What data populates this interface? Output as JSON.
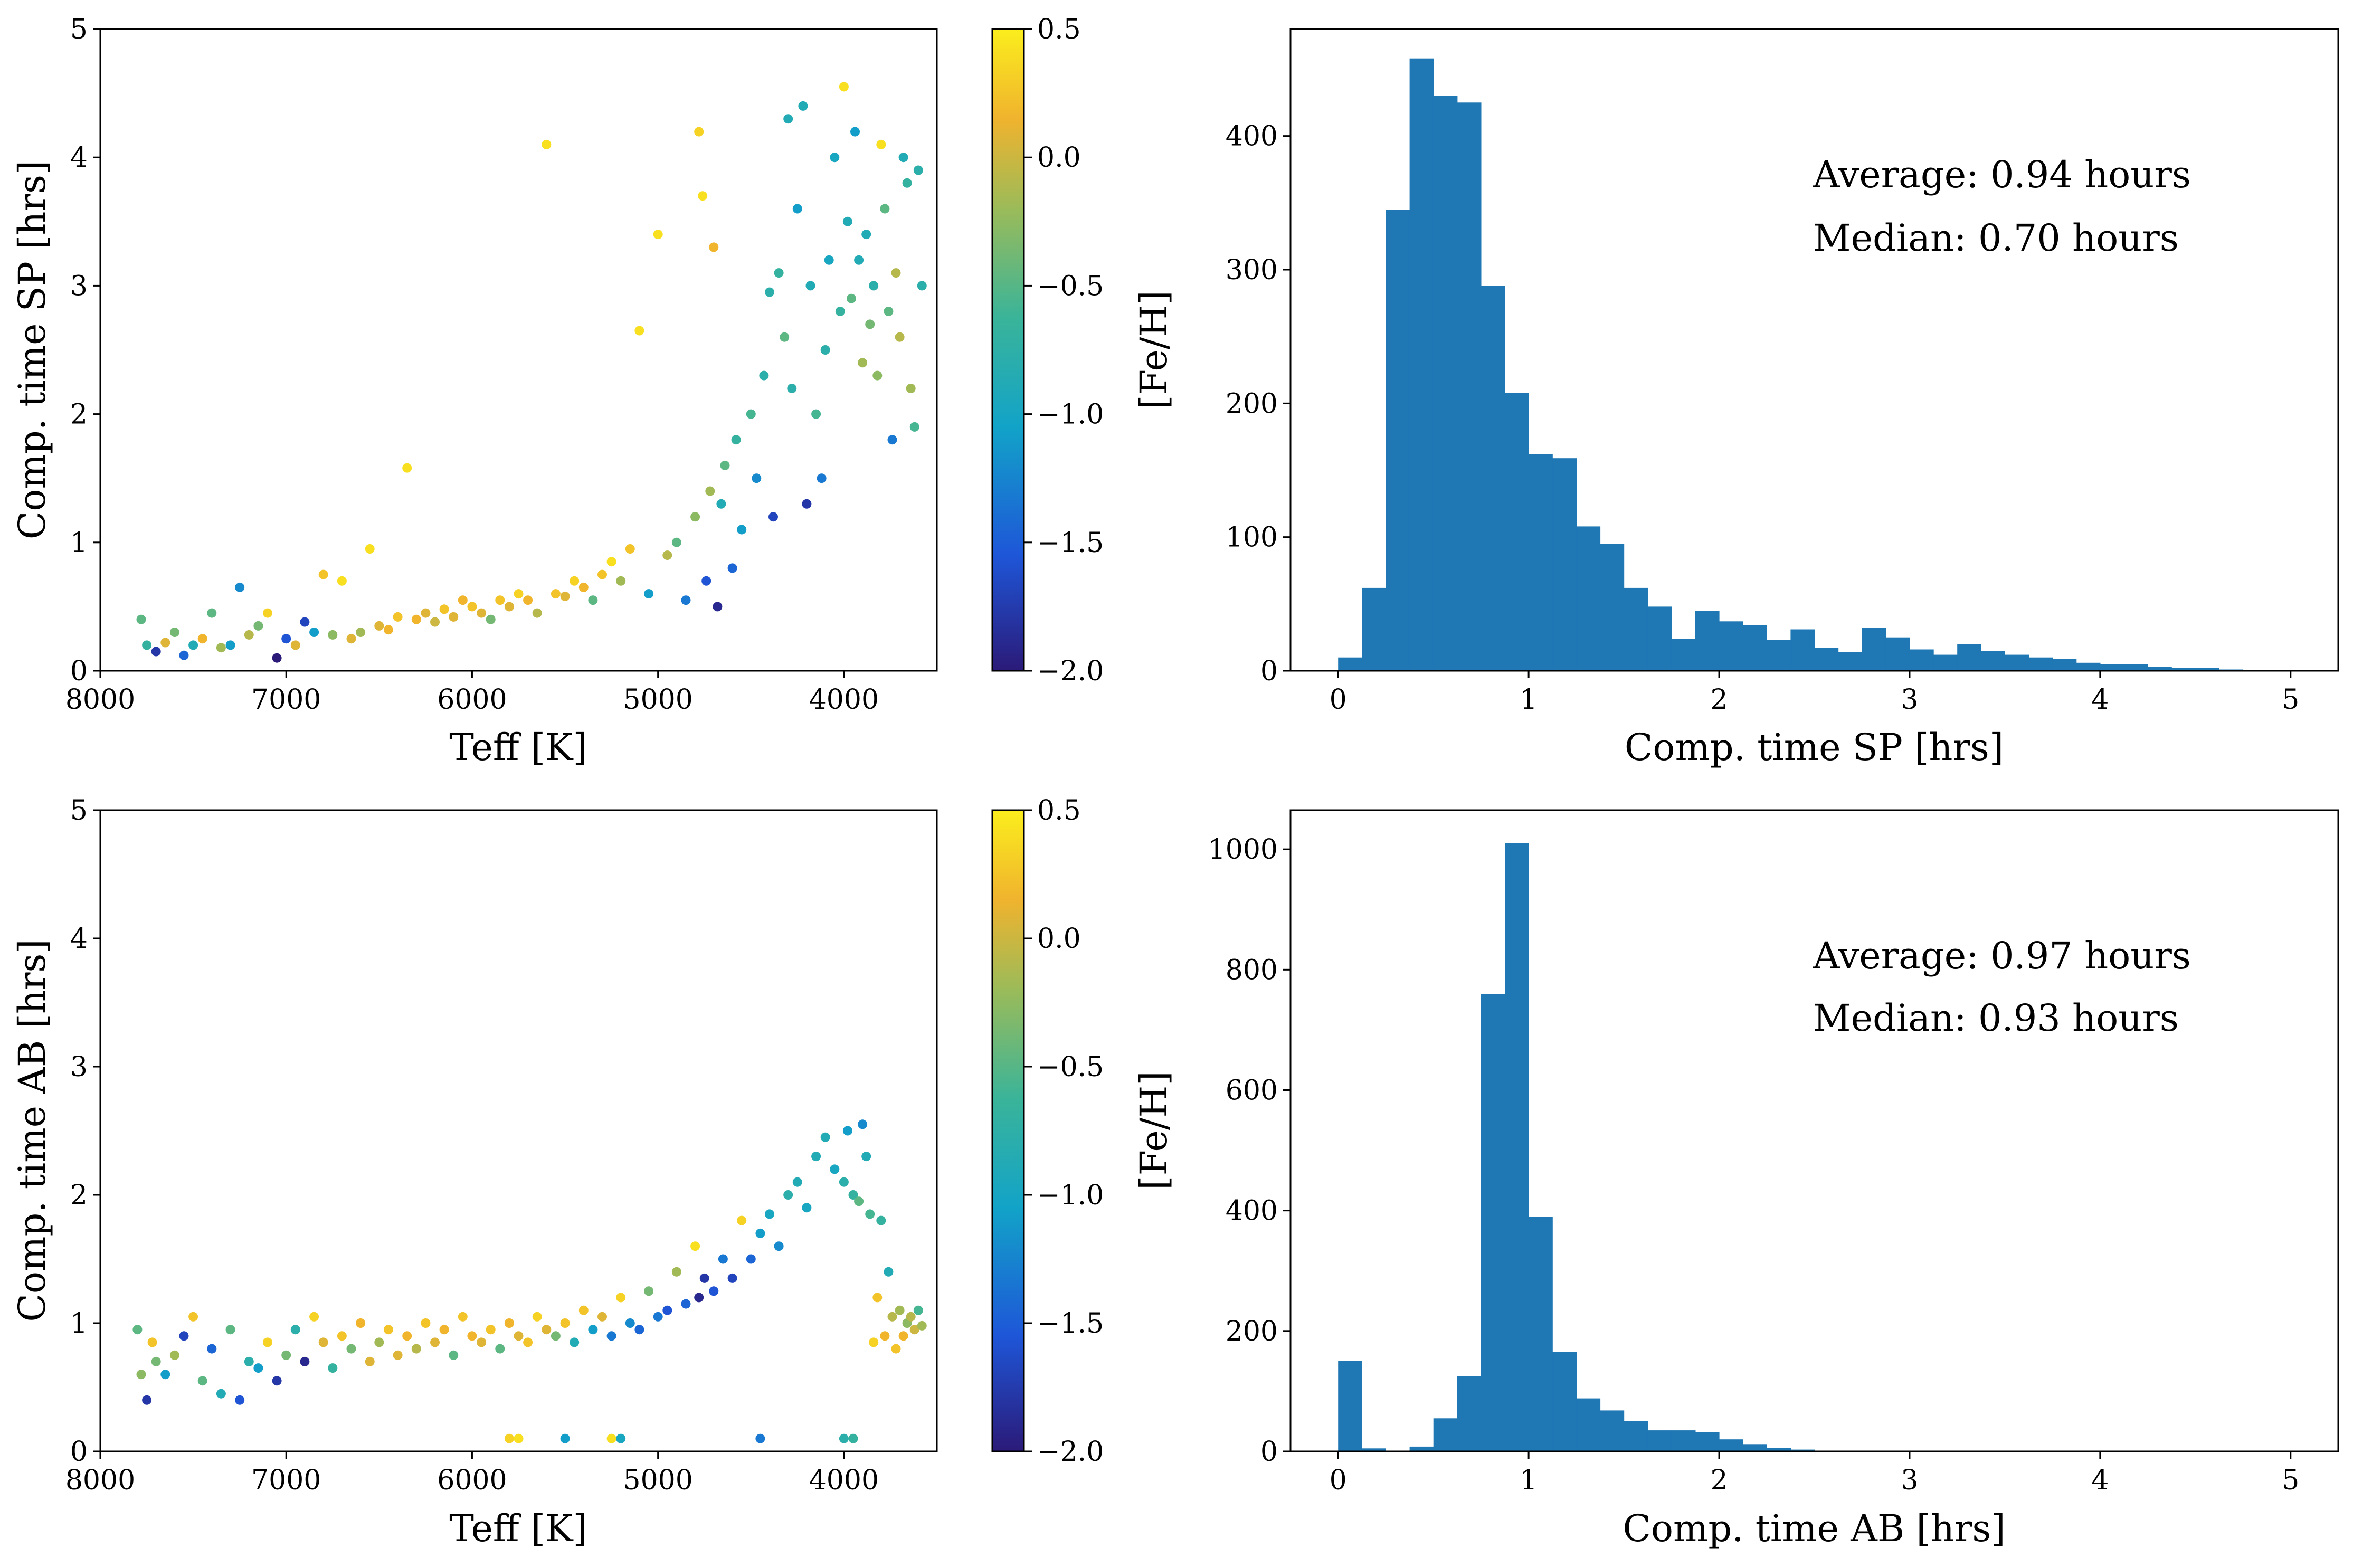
{
  "chart_data": [
    {
      "id": "scatter_sp",
      "type": "scatter",
      "xlabel": "Teff [K]",
      "ylabel": "Comp. time SP [hrs]",
      "xlim": [
        8000,
        3500
      ],
      "ylim": [
        0,
        5
      ],
      "xticks": [
        8000,
        7000,
        6000,
        5000,
        4000
      ],
      "yticks": [
        0,
        1,
        2,
        3,
        4,
        5
      ],
      "colorbar": {
        "label": "[Fe/H]",
        "min": -2.0,
        "max": 0.5,
        "ticks": [
          0.5,
          0.0,
          -0.5,
          -1.0,
          -1.5,
          -2.0
        ],
        "tick_labels": [
          "0.5",
          "0.0",
          "−0.5",
          "−1.0",
          "−1.5",
          "−2.0"
        ]
      },
      "points": [
        [
          7780,
          0.4,
          -0.6
        ],
        [
          7750,
          0.2,
          -0.8
        ],
        [
          7700,
          0.15,
          -1.8
        ],
        [
          7650,
          0.22,
          0.0
        ],
        [
          7600,
          0.3,
          -0.5
        ],
        [
          7550,
          0.12,
          -1.5
        ],
        [
          7500,
          0.2,
          -1.0
        ],
        [
          7450,
          0.25,
          0.1
        ],
        [
          7400,
          0.45,
          -0.6
        ],
        [
          7350,
          0.18,
          -0.3
        ],
        [
          7300,
          0.2,
          -1.2
        ],
        [
          7250,
          0.65,
          -1.3
        ],
        [
          7200,
          0.28,
          -0.2
        ],
        [
          7150,
          0.35,
          -0.5
        ],
        [
          7100,
          0.45,
          0.3
        ],
        [
          7050,
          0.1,
          -2.0
        ],
        [
          7000,
          0.25,
          -1.6
        ],
        [
          6950,
          0.2,
          0.0
        ],
        [
          6900,
          0.38,
          -1.7
        ],
        [
          6850,
          0.3,
          -1.2
        ],
        [
          6800,
          0.75,
          0.2
        ],
        [
          6750,
          0.28,
          -0.4
        ],
        [
          6700,
          0.7,
          0.4
        ],
        [
          6650,
          0.25,
          0.0
        ],
        [
          6600,
          0.3,
          -0.3
        ],
        [
          6550,
          0.95,
          0.4
        ],
        [
          6500,
          0.35,
          0.0
        ],
        [
          6450,
          0.32,
          0.1
        ],
        [
          6400,
          0.42,
          0.2
        ],
        [
          6350,
          1.58,
          0.4
        ],
        [
          6300,
          0.4,
          0.1
        ],
        [
          6250,
          0.45,
          0.0
        ],
        [
          6200,
          0.38,
          -0.1
        ],
        [
          6150,
          0.48,
          0.2
        ],
        [
          6100,
          0.42,
          0.0
        ],
        [
          6050,
          0.55,
          0.1
        ],
        [
          6000,
          0.5,
          0.2
        ],
        [
          5950,
          0.45,
          0.0
        ],
        [
          5900,
          0.4,
          -0.5
        ],
        [
          5850,
          0.55,
          0.2
        ],
        [
          5800,
          0.5,
          0.0
        ],
        [
          5750,
          0.6,
          0.3
        ],
        [
          5700,
          0.55,
          0.1
        ],
        [
          5650,
          0.45,
          -0.2
        ],
        [
          5600,
          4.1,
          0.4
        ],
        [
          5550,
          0.6,
          0.2
        ],
        [
          5500,
          0.58,
          0.0
        ],
        [
          5450,
          0.7,
          0.3
        ],
        [
          5400,
          0.65,
          0.1
        ],
        [
          5350,
          0.55,
          -0.6
        ],
        [
          5300,
          0.75,
          0.2
        ],
        [
          5250,
          0.85,
          0.4
        ],
        [
          5200,
          0.7,
          -0.3
        ],
        [
          5150,
          0.95,
          0.2
        ],
        [
          5100,
          2.65,
          0.4
        ],
        [
          5050,
          0.6,
          -1.2
        ],
        [
          5000,
          3.4,
          0.4
        ],
        [
          4950,
          0.9,
          -0.2
        ],
        [
          4900,
          1.0,
          -0.6
        ],
        [
          4850,
          0.55,
          -1.4
        ],
        [
          4800,
          1.2,
          -0.4
        ],
        [
          4780,
          4.2,
          0.3
        ],
        [
          4760,
          3.7,
          0.4
        ],
        [
          4740,
          0.7,
          -1.6
        ],
        [
          4720,
          1.4,
          -0.3
        ],
        [
          4700,
          3.3,
          0.1
        ],
        [
          4680,
          0.5,
          -1.9
        ],
        [
          4660,
          1.3,
          -1.0
        ],
        [
          4640,
          1.6,
          -0.6
        ],
        [
          4600,
          0.8,
          -1.5
        ],
        [
          4580,
          1.8,
          -0.8
        ],
        [
          4550,
          1.1,
          -1.2
        ],
        [
          4500,
          2.0,
          -0.7
        ],
        [
          4470,
          1.5,
          -1.3
        ],
        [
          4430,
          2.3,
          -0.9
        ],
        [
          4400,
          2.95,
          -0.9
        ],
        [
          4380,
          1.2,
          -1.7
        ],
        [
          4350,
          3.1,
          -0.8
        ],
        [
          4320,
          2.6,
          -0.6
        ],
        [
          4300,
          4.3,
          -1.0
        ],
        [
          4280,
          2.2,
          -0.9
        ],
        [
          4250,
          3.6,
          -1.2
        ],
        [
          4220,
          4.4,
          -1.0
        ],
        [
          4200,
          1.3,
          -1.8
        ],
        [
          4180,
          3.0,
          -1.0
        ],
        [
          4150,
          2.0,
          -0.7
        ],
        [
          4120,
          1.5,
          -1.4
        ],
        [
          4100,
          2.5,
          -0.9
        ],
        [
          4080,
          3.2,
          -1.1
        ],
        [
          4050,
          4.0,
          -1.1
        ],
        [
          4020,
          2.8,
          -0.8
        ],
        [
          4000,
          4.55,
          0.4
        ],
        [
          3980,
          3.5,
          -1.0
        ],
        [
          3960,
          2.9,
          -0.6
        ],
        [
          3940,
          4.2,
          -1.2
        ],
        [
          3920,
          3.2,
          -1.0
        ],
        [
          3900,
          2.4,
          -0.3
        ],
        [
          3880,
          3.4,
          -1.0
        ],
        [
          3860,
          2.7,
          -0.5
        ],
        [
          3840,
          3.0,
          -0.9
        ],
        [
          3820,
          2.3,
          -0.4
        ],
        [
          3800,
          4.1,
          0.4
        ],
        [
          3780,
          3.6,
          -0.6
        ],
        [
          3760,
          2.8,
          -0.6
        ],
        [
          3740,
          1.8,
          -1.4
        ],
        [
          3720,
          3.1,
          -0.2
        ],
        [
          3700,
          2.6,
          -0.2
        ],
        [
          3680,
          4.0,
          -1.0
        ],
        [
          3660,
          3.8,
          -0.8
        ],
        [
          3640,
          2.2,
          -0.3
        ],
        [
          3620,
          1.9,
          -0.7
        ],
        [
          3600,
          3.9,
          -0.9
        ],
        [
          3580,
          3.0,
          -0.9
        ]
      ]
    },
    {
      "id": "hist_sp",
      "type": "bar",
      "xlabel": "Comp. time SP [hrs]",
      "ylabel": "",
      "xlim": [
        -0.25,
        5.25
      ],
      "ylim": [
        0,
        480
      ],
      "xticks": [
        0,
        1,
        2,
        3,
        4,
        5
      ],
      "yticks": [
        0,
        100,
        200,
        300,
        400
      ],
      "bin_start": 0.0,
      "bin_width": 0.125,
      "values": [
        10,
        62,
        345,
        458,
        430,
        425,
        288,
        208,
        162,
        159,
        108,
        95,
        62,
        48,
        24,
        45,
        37,
        34,
        23,
        31,
        17,
        14,
        32,
        25,
        16,
        12,
        20,
        15,
        12,
        10,
        9,
        6,
        5,
        5,
        3,
        2,
        2,
        1,
        0,
        0
      ],
      "annotations": [
        "Average: 0.94 hours",
        "Median: 0.70 hours"
      ]
    },
    {
      "id": "scatter_ab",
      "type": "scatter",
      "xlabel": "Teff [K]",
      "ylabel": "Comp. time AB [hrs]",
      "xlim": [
        8000,
        3500
      ],
      "ylim": [
        0,
        5
      ],
      "xticks": [
        8000,
        7000,
        6000,
        5000,
        4000
      ],
      "yticks": [
        0,
        1,
        2,
        3,
        4,
        5
      ],
      "colorbar": {
        "label": "[Fe/H]",
        "min": -2.0,
        "max": 0.5,
        "ticks": [
          0.5,
          0.0,
          -0.5,
          -1.0,
          -1.5,
          -2.0
        ],
        "tick_labels": [
          "0.5",
          "0.0",
          "−0.5",
          "−1.0",
          "−1.5",
          "−2.0"
        ]
      },
      "points": [
        [
          7800,
          0.95,
          -0.6
        ],
        [
          7780,
          0.6,
          -0.4
        ],
        [
          7750,
          0.4,
          -1.8
        ],
        [
          7720,
          0.85,
          0.2
        ],
        [
          7700,
          0.7,
          -0.5
        ],
        [
          7650,
          0.6,
          -1.2
        ],
        [
          7600,
          0.75,
          -0.3
        ],
        [
          7550,
          0.9,
          -1.7
        ],
        [
          7500,
          1.05,
          0.2
        ],
        [
          7450,
          0.55,
          -0.6
        ],
        [
          7400,
          0.8,
          -1.5
        ],
        [
          7350,
          0.45,
          -1.0
        ],
        [
          7300,
          0.95,
          -0.6
        ],
        [
          7250,
          0.4,
          -1.6
        ],
        [
          7200,
          0.7,
          -0.9
        ],
        [
          7150,
          0.65,
          -1.2
        ],
        [
          7100,
          0.85,
          0.3
        ],
        [
          7050,
          0.55,
          -1.8
        ],
        [
          7000,
          0.75,
          -0.5
        ],
        [
          6950,
          0.95,
          -0.9
        ],
        [
          6900,
          0.7,
          -1.9
        ],
        [
          6850,
          1.05,
          0.3
        ],
        [
          6800,
          0.85,
          0.0
        ],
        [
          6750,
          0.65,
          -0.8
        ],
        [
          6700,
          0.9,
          0.2
        ],
        [
          6650,
          0.8,
          -0.5
        ],
        [
          6600,
          1.0,
          0.1
        ],
        [
          6550,
          0.7,
          0.0
        ],
        [
          6500,
          0.85,
          -0.3
        ],
        [
          6450,
          0.95,
          0.2
        ],
        [
          6400,
          0.75,
          0.0
        ],
        [
          6350,
          0.9,
          0.1
        ],
        [
          6300,
          0.8,
          -0.2
        ],
        [
          6250,
          1.0,
          0.2
        ],
        [
          6200,
          0.85,
          0.0
        ],
        [
          6150,
          0.95,
          0.1
        ],
        [
          6100,
          0.75,
          -0.6
        ],
        [
          6050,
          1.05,
          0.2
        ],
        [
          6000,
          0.9,
          0.1
        ],
        [
          5950,
          0.85,
          0.0
        ],
        [
          5900,
          0.95,
          0.2
        ],
        [
          5850,
          0.8,
          -0.6
        ],
        [
          5800,
          1.0,
          0.1
        ],
        [
          5750,
          0.9,
          0.0
        ],
        [
          5700,
          0.85,
          0.2
        ],
        [
          5650,
          1.05,
          0.3
        ],
        [
          5600,
          0.95,
          0.0
        ],
        [
          5550,
          0.9,
          -0.5
        ],
        [
          5500,
          1.0,
          0.2
        ],
        [
          5450,
          0.85,
          -1.0
        ],
        [
          5400,
          1.1,
          0.2
        ],
        [
          5350,
          0.95,
          -1.2
        ],
        [
          5300,
          1.05,
          0.0
        ],
        [
          5250,
          0.9,
          -1.4
        ],
        [
          5200,
          1.2,
          0.3
        ],
        [
          5150,
          1.0,
          -1.3
        ],
        [
          5100,
          0.95,
          -1.5
        ],
        [
          5050,
          1.25,
          -0.5
        ],
        [
          5000,
          1.05,
          -1.4
        ],
        [
          4950,
          1.1,
          -1.6
        ],
        [
          4900,
          1.4,
          -0.3
        ],
        [
          4850,
          1.15,
          -1.5
        ],
        [
          4800,
          1.6,
          0.4
        ],
        [
          4780,
          1.2,
          -1.9
        ],
        [
          4750,
          1.35,
          -1.8
        ],
        [
          4700,
          1.25,
          -1.6
        ],
        [
          4650,
          1.5,
          -1.4
        ],
        [
          4600,
          1.35,
          -1.7
        ],
        [
          4550,
          1.8,
          0.3
        ],
        [
          4500,
          1.5,
          -1.5
        ],
        [
          4450,
          1.7,
          -1.2
        ],
        [
          4400,
          1.85,
          -1.1
        ],
        [
          4350,
          1.6,
          -1.3
        ],
        [
          4300,
          2.0,
          -0.9
        ],
        [
          4250,
          2.1,
          -1.0
        ],
        [
          4200,
          1.9,
          -1.1
        ],
        [
          4150,
          2.3,
          -1.0
        ],
        [
          4100,
          2.45,
          -1.0
        ],
        [
          4050,
          2.2,
          -1.1
        ],
        [
          4000,
          2.1,
          -0.9
        ],
        [
          3980,
          2.5,
          -1.2
        ],
        [
          3950,
          2.0,
          -0.8
        ],
        [
          3920,
          1.95,
          -0.6
        ],
        [
          3900,
          2.55,
          -1.3
        ],
        [
          3880,
          2.3,
          -1.0
        ],
        [
          3860,
          1.85,
          -0.7
        ],
        [
          3840,
          0.85,
          0.3
        ],
        [
          3820,
          1.2,
          0.2
        ],
        [
          3800,
          1.8,
          -0.8
        ],
        [
          3780,
          0.9,
          0.1
        ],
        [
          3760,
          1.4,
          -1.0
        ],
        [
          3740,
          1.05,
          -0.2
        ],
        [
          3720,
          0.8,
          0.2
        ],
        [
          3700,
          1.1,
          -0.3
        ],
        [
          3680,
          0.9,
          0.1
        ],
        [
          3660,
          1.0,
          -0.4
        ],
        [
          3640,
          1.05,
          -0.2
        ],
        [
          3620,
          0.95,
          -0.1
        ],
        [
          3600,
          1.1,
          -0.7
        ],
        [
          3580,
          0.98,
          -0.3
        ],
        [
          5800,
          0.1,
          0.3
        ],
        [
          5750,
          0.1,
          0.4
        ],
        [
          5500,
          0.1,
          -1.2
        ],
        [
          5250,
          0.1,
          0.4
        ],
        [
          5200,
          0.1,
          -1.1
        ],
        [
          4450,
          0.1,
          -1.4
        ],
        [
          4000,
          0.1,
          -0.9
        ],
        [
          3950,
          0.1,
          -0.8
        ]
      ]
    },
    {
      "id": "hist_ab",
      "type": "bar",
      "xlabel": "Comp. time AB [hrs]",
      "ylabel": "",
      "xlim": [
        -0.25,
        5.25
      ],
      "ylim": [
        0,
        1065
      ],
      "xticks": [
        0,
        1,
        2,
        3,
        4,
        5
      ],
      "yticks": [
        0,
        200,
        400,
        600,
        800,
        1000
      ],
      "bin_start": 0.0,
      "bin_width": 0.125,
      "values": [
        150,
        5,
        0,
        8,
        55,
        125,
        760,
        1010,
        390,
        165,
        88,
        68,
        50,
        35,
        35,
        32,
        20,
        12,
        6,
        3,
        1,
        0,
        0,
        0,
        0,
        0,
        0,
        0,
        0,
        0,
        0,
        0,
        0,
        0,
        0,
        0,
        0,
        0,
        0,
        0
      ],
      "annotations": [
        "Average: 0.97 hours",
        "Median: 0.93 hours"
      ]
    }
  ],
  "colors": {
    "bar": "#1f77b4",
    "viridis_like": [
      "#2b1a78",
      "#1e56d8",
      "#12a3c8",
      "#3ab499",
      "#9bbb59",
      "#f0b32e",
      "#fbee1d"
    ]
  }
}
